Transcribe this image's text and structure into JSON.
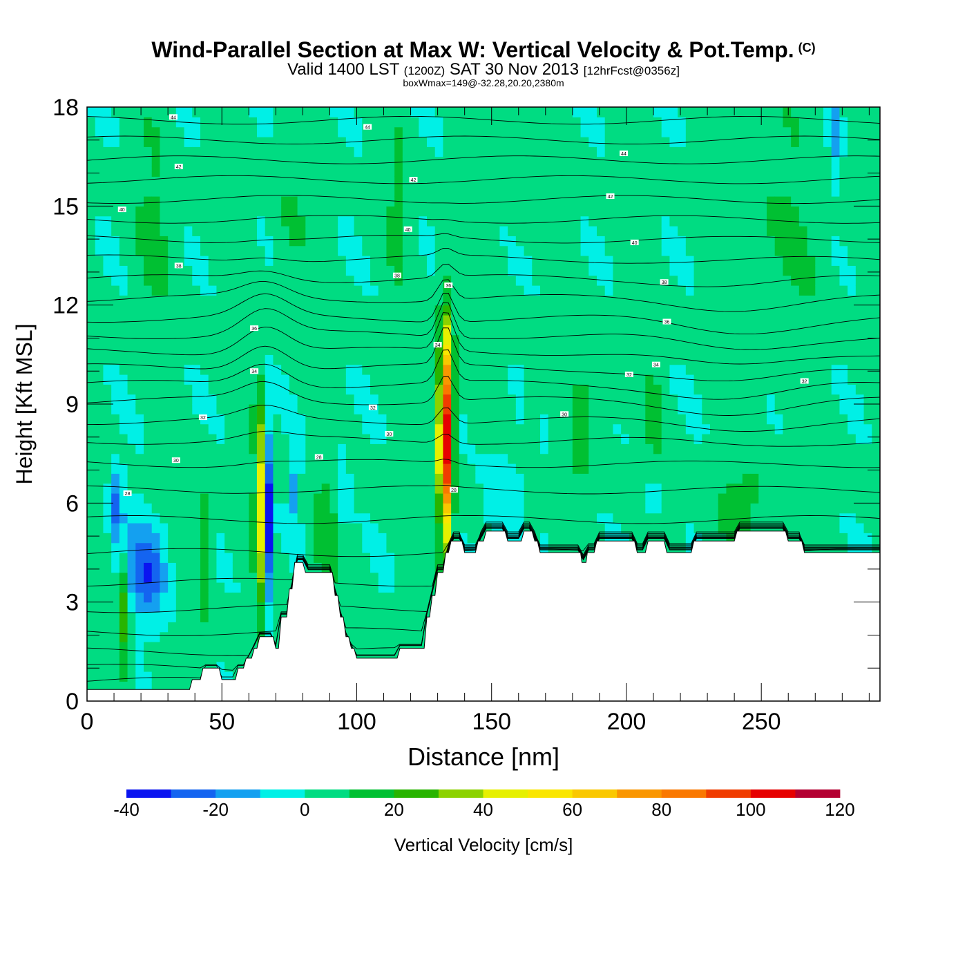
{
  "header": {
    "title": "Wind-Parallel Section at Max W: Vertical Velocity & Pot.Temp.",
    "copyright": "(C)",
    "valid_prefix": "Valid 1400 LST",
    "valid_utc": "(1200Z)",
    "valid_date": "SAT 30 Nov 2013",
    "forecast_info": "[12hrFcst@0356z]",
    "box_info": "boxWmax=149@-32.28,20.20,2380m"
  },
  "chart_data": {
    "type": "heatmap",
    "title": "Wind-Parallel Section at Max W: Vertical Velocity & Pot.Temp.",
    "xlabel": "Distance [nm]",
    "ylabel": "Height [Kft MSL]",
    "xlim": [
      0,
      294
    ],
    "ylim": [
      0,
      18
    ],
    "x_ticks": [
      0,
      50,
      100,
      150,
      200,
      250
    ],
    "y_ticks": [
      0,
      3,
      6,
      9,
      12,
      15,
      18
    ],
    "colorbar": {
      "label": "Vertical Velocity [cm/s]",
      "bounds": [
        -40,
        -30,
        -20,
        -10,
        0,
        10,
        20,
        30,
        40,
        50,
        60,
        70,
        80,
        90,
        100,
        110,
        120
      ],
      "tick_labels": [
        "-40",
        "-20",
        "0",
        "20",
        "40",
        "60",
        "80",
        "100",
        "120"
      ],
      "colors": [
        "#0a14f0",
        "#1464f0",
        "#14a0f0",
        "#00f0e6",
        "#00dc82",
        "#00c032",
        "#28b400",
        "#8cd200",
        "#e6f000",
        "#fae600",
        "#fac800",
        "#fa9600",
        "#fa7800",
        "#f03c00",
        "#e60000",
        "#b40032"
      ]
    },
    "terrain_kft": [
      [
        0,
        0.35
      ],
      [
        38,
        0.35
      ],
      [
        39,
        0.65
      ],
      [
        42,
        0.65
      ],
      [
        43,
        1.0
      ],
      [
        49,
        1.0
      ],
      [
        50,
        0.65
      ],
      [
        55,
        0.65
      ],
      [
        56,
        1.0
      ],
      [
        58,
        1.0
      ],
      [
        59,
        1.3
      ],
      [
        61,
        1.3
      ],
      [
        62,
        1.6
      ],
      [
        63,
        1.6
      ],
      [
        64,
        1.95
      ],
      [
        69,
        1.95
      ],
      [
        70,
        1.6
      ],
      [
        71,
        1.6
      ],
      [
        72,
        2.55
      ],
      [
        74,
        2.55
      ],
      [
        75,
        3.4
      ],
      [
        76,
        3.4
      ],
      [
        77,
        4.2
      ],
      [
        80,
        4.2
      ],
      [
        81,
        3.9
      ],
      [
        91,
        3.9
      ],
      [
        92,
        3.2
      ],
      [
        93,
        3.2
      ],
      [
        94,
        2.55
      ],
      [
        95,
        2.55
      ],
      [
        96,
        1.95
      ],
      [
        97,
        1.95
      ],
      [
        98,
        1.6
      ],
      [
        99,
        1.6
      ],
      [
        100,
        1.3
      ],
      [
        115,
        1.3
      ],
      [
        116,
        1.6
      ],
      [
        125,
        1.6
      ],
      [
        126,
        2.55
      ],
      [
        127,
        2.55
      ],
      [
        128,
        3.2
      ],
      [
        129,
        3.2
      ],
      [
        130,
        3.9
      ],
      [
        132,
        3.9
      ],
      [
        133,
        4.5
      ],
      [
        134,
        4.5
      ],
      [
        135,
        4.85
      ],
      [
        139,
        4.85
      ],
      [
        140,
        4.5
      ],
      [
        144,
        4.5
      ],
      [
        145,
        4.85
      ],
      [
        147,
        4.85
      ],
      [
        148,
        5.15
      ],
      [
        155,
        5.15
      ],
      [
        156,
        4.85
      ],
      [
        161,
        4.85
      ],
      [
        162,
        5.15
      ],
      [
        165,
        5.15
      ],
      [
        166,
        4.85
      ],
      [
        167,
        4.85
      ],
      [
        168,
        4.5
      ],
      [
        183,
        4.5
      ],
      [
        183.5,
        4.2
      ],
      [
        185,
        4.2
      ],
      [
        185.5,
        4.5
      ],
      [
        188,
        4.5
      ],
      [
        189,
        4.85
      ],
      [
        203,
        4.85
      ],
      [
        204,
        4.5
      ],
      [
        207,
        4.5
      ],
      [
        208,
        4.85
      ],
      [
        214,
        4.85
      ],
      [
        215,
        4.5
      ],
      [
        224,
        4.5
      ],
      [
        225,
        4.85
      ],
      [
        240,
        4.85
      ],
      [
        241,
        5.15
      ],
      [
        259,
        5.15
      ],
      [
        260,
        4.85
      ],
      [
        265,
        4.85
      ],
      [
        266,
        4.5
      ],
      [
        294,
        4.5
      ]
    ],
    "theta_contour_labels": [
      {
        "text": "44",
        "x": 32,
        "y": 17.7
      },
      {
        "text": "44",
        "x": 104,
        "y": 17.4
      },
      {
        "text": "44",
        "x": 199,
        "y": 16.6
      },
      {
        "text": "42",
        "x": 34,
        "y": 16.2
      },
      {
        "text": "42",
        "x": 121,
        "y": 15.8
      },
      {
        "text": "42",
        "x": 194,
        "y": 15.3
      },
      {
        "text": "40",
        "x": 13,
        "y": 14.9
      },
      {
        "text": "40",
        "x": 119,
        "y": 14.3
      },
      {
        "text": "40",
        "x": 203,
        "y": 13.9
      },
      {
        "text": "38",
        "x": 34,
        "y": 13.2
      },
      {
        "text": "38",
        "x": 115,
        "y": 12.9
      },
      {
        "text": "38",
        "x": 214,
        "y": 12.7
      },
      {
        "text": "36",
        "x": 62,
        "y": 11.3
      },
      {
        "text": "36",
        "x": 215,
        "y": 11.5
      },
      {
        "text": "36",
        "x": 134,
        "y": 12.6
      },
      {
        "text": "34",
        "x": 62,
        "y": 10.0
      },
      {
        "text": "34",
        "x": 130,
        "y": 10.8
      },
      {
        "text": "34",
        "x": 211,
        "y": 10.2
      },
      {
        "text": "32",
        "x": 43,
        "y": 8.6
      },
      {
        "text": "32",
        "x": 106,
        "y": 8.9
      },
      {
        "text": "32",
        "x": 201,
        "y": 9.9
      },
      {
        "text": "32",
        "x": 266,
        "y": 9.7
      },
      {
        "text": "30",
        "x": 33,
        "y": 7.3
      },
      {
        "text": "30",
        "x": 112,
        "y": 8.1
      },
      {
        "text": "30",
        "x": 177,
        "y": 8.7
      },
      {
        "text": "28",
        "x": 15,
        "y": 6.3
      },
      {
        "text": "28",
        "x": 86,
        "y": 7.4
      },
      {
        "text": "28",
        "x": 136,
        "y": 6.4
      }
    ],
    "grid": false,
    "legend_position": "bottom"
  }
}
